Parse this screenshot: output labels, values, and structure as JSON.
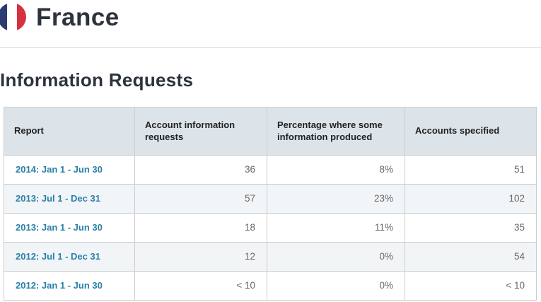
{
  "header": {
    "country": "France",
    "flag_icon": "france-flag",
    "flag_colors": {
      "blue": "#2b3c72",
      "white": "#ffffff",
      "red": "#d5313e"
    }
  },
  "section": {
    "title": "Information Requests"
  },
  "table": {
    "columns": [
      {
        "label": "Report"
      },
      {
        "label": "Account information requests"
      },
      {
        "label": "Percentage where some information produced"
      },
      {
        "label": "Accounts specified"
      }
    ],
    "rows": [
      {
        "report": "2014: Jan 1 - Jun 30",
        "requests": "36",
        "percentage": "8%",
        "accounts": "51"
      },
      {
        "report": "2013: Jul 1 - Dec 31",
        "requests": "57",
        "percentage": "23%",
        "accounts": "102"
      },
      {
        "report": "2013: Jan 1 - Jun 30",
        "requests": "18",
        "percentage": "11%",
        "accounts": "35"
      },
      {
        "report": "2012: Jul 1 - Dec 31",
        "requests": "12",
        "percentage": "0%",
        "accounts": "54"
      },
      {
        "report": "2012: Jan 1 - Jun 30",
        "requests": "< 10",
        "percentage": "0%",
        "accounts": "< 10"
      }
    ]
  },
  "colors": {
    "heading_text": "#2d333c",
    "table_header_bg": "#dde4e9",
    "table_border": "#cccccc",
    "stripe_row_bg": "#f2f5f8",
    "link": "#2980a8",
    "value_text": "#666666",
    "divider": "#dddddd"
  }
}
